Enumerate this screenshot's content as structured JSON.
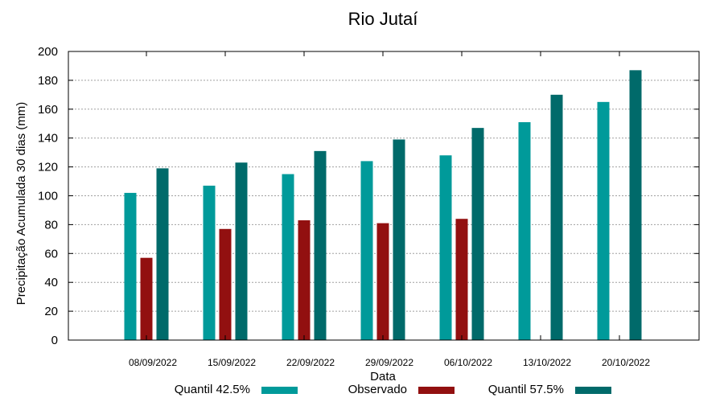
{
  "chart_data": {
    "type": "bar",
    "title": "Rio Jutaí",
    "xlabel": "Data",
    "ylabel": "Precipitação Acumulada 30 dias (mm)",
    "ylim": [
      0,
      200
    ],
    "yticks": [
      0,
      20,
      40,
      60,
      80,
      100,
      120,
      140,
      160,
      180,
      200
    ],
    "grid": true,
    "legend_position": "bottom",
    "categories": [
      "08/09/2022",
      "15/09/2022",
      "22/09/2022",
      "29/09/2022",
      "06/10/2022",
      "13/10/2022",
      "20/10/2022"
    ],
    "series": [
      {
        "name": "Quantil 42.5%",
        "color": "#009a9a",
        "values": [
          102,
          107,
          115,
          124,
          128,
          151,
          165
        ]
      },
      {
        "name": "Observado",
        "color": "#921010",
        "values": [
          57,
          77,
          83,
          81,
          84,
          null,
          null
        ]
      },
      {
        "name": "Quantil 57.5%",
        "color": "#006a6a",
        "values": [
          119,
          123,
          131,
          139,
          147,
          170,
          187
        ]
      }
    ]
  }
}
